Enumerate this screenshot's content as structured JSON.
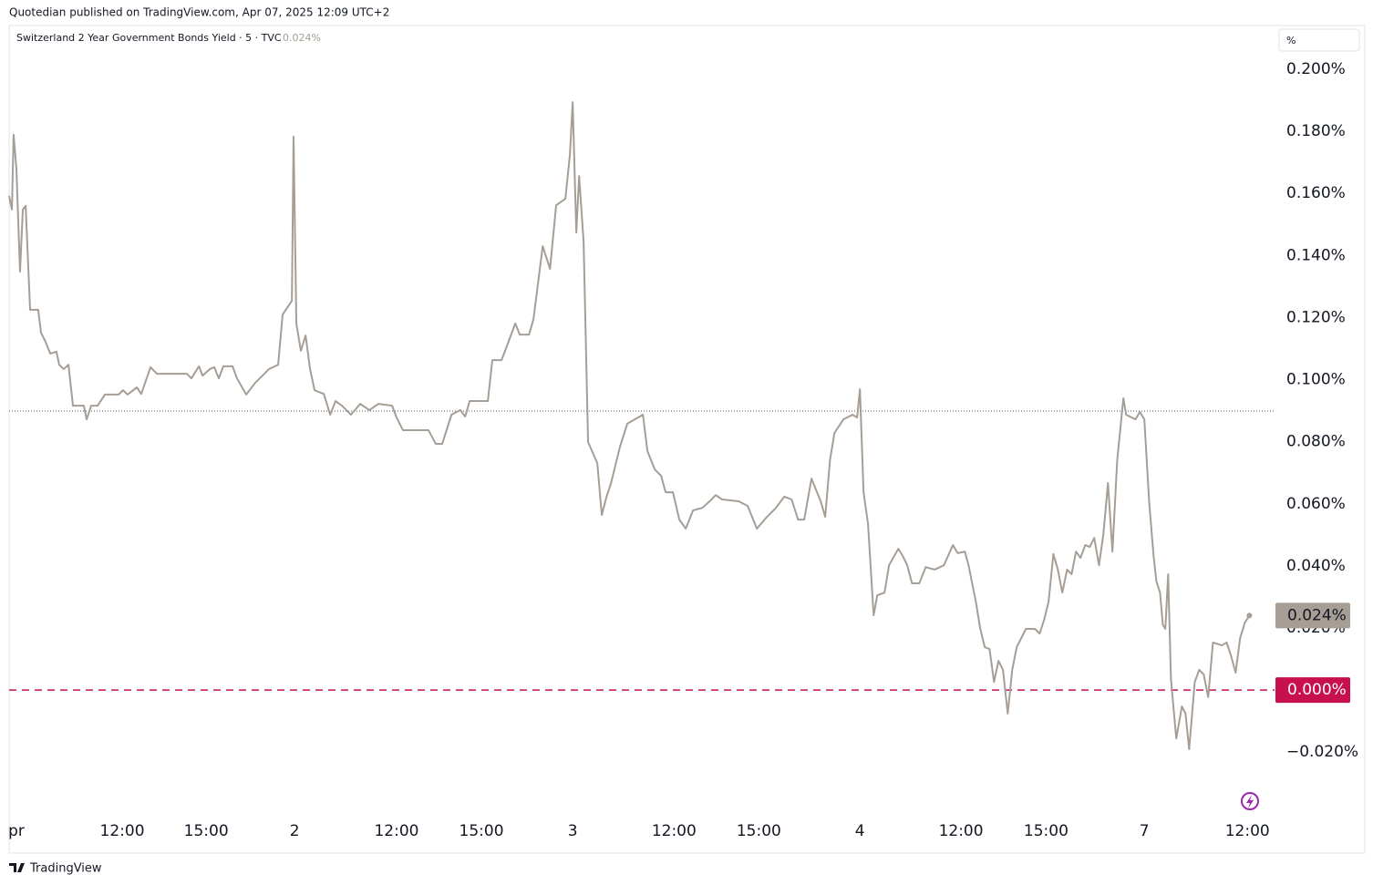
{
  "header": "Quotedian published on TradingView.com, Apr 07, 2025 12:09 UTC+2",
  "footer": "TradingView",
  "chart_data": {
    "type": "line",
    "y_unit": "%",
    "xlim": [
      0,
      45.2
    ],
    "ylim": [
      -0.0405,
      0.2141
    ],
    "xticks": [
      {
        "value": 0.26,
        "label": "pr"
      },
      {
        "value": 4.04,
        "label": "12:00"
      },
      {
        "value": 7.04,
        "label": "15:00"
      },
      {
        "value": 10.2,
        "label": "2"
      },
      {
        "value": 13.84,
        "label": "12:00"
      },
      {
        "value": 16.87,
        "label": "15:00"
      },
      {
        "value": 20.13,
        "label": "3"
      },
      {
        "value": 23.75,
        "label": "12:00"
      },
      {
        "value": 26.78,
        "label": "15:00"
      },
      {
        "value": 30.39,
        "label": "4"
      },
      {
        "value": 34.0,
        "label": "12:00"
      },
      {
        "value": 37.04,
        "label": "15:00"
      },
      {
        "value": 40.55,
        "label": "7"
      },
      {
        "value": 44.23,
        "label": "12:00"
      }
    ],
    "yticks": [
      {
        "value": 0.2,
        "label": "0.200%"
      },
      {
        "value": 0.18,
        "label": "0.180%"
      },
      {
        "value": 0.16,
        "label": "0.160%"
      },
      {
        "value": 0.14,
        "label": "0.140%"
      },
      {
        "value": 0.12,
        "label": "0.120%"
      },
      {
        "value": 0.1,
        "label": "0.100%"
      },
      {
        "value": 0.08,
        "label": "0.080%"
      },
      {
        "value": 0.06,
        "label": "0.060%"
      },
      {
        "value": 0.04,
        "label": "0.040%"
      },
      {
        "value": 0.02,
        "label": "0.020%"
      },
      {
        "value": -0.02,
        "label": "−0.020%"
      }
    ],
    "x": [
      0,
      0.1,
      0.16,
      0.26,
      0.39,
      0.49,
      0.59,
      0.75,
      1.04,
      1.14,
      1.3,
      1.47,
      1.69,
      1.79,
      1.95,
      2.12,
      2.28,
      2.67,
      2.77,
      2.93,
      3.16,
      3.42,
      3.91,
      4.07,
      4.23,
      4.56,
      4.72,
      5.05,
      5.28,
      6.35,
      6.51,
      6.78,
      6.91,
      7.17,
      7.33,
      7.49,
      7.65,
      7.98,
      8.14,
      8.47,
      8.79,
      9.12,
      9.28,
      9.61,
      9.77,
      10.1,
      10.16,
      10.26,
      10.42,
      10.59,
      10.75,
      10.91,
      11.24,
      11.47,
      11.66,
      11.89,
      12.21,
      12.54,
      12.87,
      13.19,
      13.68,
      13.84,
      14.07,
      14.98,
      15.24,
      15.47,
      15.8,
      16.12,
      16.29,
      16.45,
      17.1,
      17.26,
      17.59,
      17.75,
      18.08,
      18.24,
      18.57,
      18.73,
      19.06,
      19.32,
      19.54,
      19.87,
      20.03,
      20.13,
      20.26,
      20.36,
      20.52,
      20.68,
      21.01,
      21.17,
      21.34,
      21.5,
      21.82,
      22.08,
      22.64,
      22.8,
      23.06,
      23.29,
      23.45,
      23.71,
      23.94,
      24.17,
      24.43,
      24.76,
      25.02,
      25.24,
      25.47,
      26.06,
      26.38,
      26.71,
      27.04,
      27.36,
      27.69,
      27.95,
      28.18,
      28.4,
      28.66,
      28.99,
      29.15,
      29.32,
      29.48,
      29.8,
      30.13,
      30.29,
      30.39,
      30.52,
      30.68,
      30.88,
      31.01,
      31.27,
      31.43,
      31.76,
      31.92,
      32.08,
      32.25,
      32.51,
      32.74,
      33.06,
      33.39,
      33.71,
      33.88,
      34.14,
      34.27,
      34.53,
      34.69,
      34.85,
      35.02,
      35.18,
      35.34,
      35.5,
      35.67,
      35.83,
      35.99,
      36.32,
      36.64,
      36.81,
      36.97,
      37.13,
      37.3,
      37.46,
      37.62,
      37.79,
      37.95,
      38.11,
      38.27,
      38.44,
      38.6,
      38.76,
      38.93,
      39.09,
      39.25,
      39.41,
      39.58,
      39.8,
      39.9,
      40.23,
      40.39,
      40.55,
      40.72,
      40.88,
      40.98,
      41.11,
      41.21,
      41.3,
      41.4,
      41.5,
      41.69,
      41.89,
      42.02,
      42.15,
      42.35,
      42.51,
      42.67,
      42.83,
      43.0,
      43.32,
      43.49,
      43.65,
      43.81,
      43.97,
      44.14,
      44.3
    ],
    "series": [
      {
        "name": "Switzerland 2 Year Government Bonds Yield · 5 · TVC",
        "color": "#a69e95",
        "values": [
          0.1592,
          0.1548,
          0.1789,
          0.168,
          0.1348,
          0.1548,
          0.156,
          0.1225,
          0.1225,
          0.1151,
          0.1122,
          0.1084,
          0.109,
          0.1048,
          0.1034,
          0.1048,
          0.0916,
          0.0916,
          0.0872,
          0.0916,
          0.0916,
          0.0952,
          0.0952,
          0.0966,
          0.0952,
          0.0975,
          0.0954,
          0.104,
          0.1019,
          0.1019,
          0.1004,
          0.1043,
          0.1013,
          0.1034,
          0.104,
          0.1004,
          0.1043,
          0.1043,
          0.1004,
          0.0952,
          0.099,
          0.1019,
          0.1034,
          0.1048,
          0.121,
          0.1254,
          0.1783,
          0.1181,
          0.1093,
          0.1142,
          0.1034,
          0.0966,
          0.0954,
          0.0887,
          0.0931,
          0.0916,
          0.0887,
          0.0922,
          0.0902,
          0.0922,
          0.0916,
          0.0878,
          0.0837,
          0.0837,
          0.0793,
          0.0793,
          0.0887,
          0.0902,
          0.0881,
          0.0931,
          0.0931,
          0.1063,
          0.1063,
          0.1101,
          0.1181,
          0.1145,
          0.1145,
          0.1195,
          0.143,
          0.1357,
          0.1562,
          0.1583,
          0.1724,
          0.1894,
          0.1474,
          0.1656,
          0.1445,
          0.0799,
          0.0731,
          0.0564,
          0.0623,
          0.0667,
          0.0784,
          0.0858,
          0.0887,
          0.077,
          0.0711,
          0.069,
          0.0637,
          0.0637,
          0.0549,
          0.052,
          0.0579,
          0.0587,
          0.0608,
          0.0628,
          0.0614,
          0.0608,
          0.0593,
          0.052,
          0.0555,
          0.0584,
          0.0623,
          0.0614,
          0.0549,
          0.0549,
          0.0681,
          0.0608,
          0.0558,
          0.074,
          0.0828,
          0.0872,
          0.0887,
          0.0878,
          0.0969,
          0.0637,
          0.0535,
          0.0241,
          0.0305,
          0.0314,
          0.0402,
          0.0455,
          0.0432,
          0.0402,
          0.0344,
          0.0344,
          0.0396,
          0.0388,
          0.0402,
          0.0467,
          0.0441,
          0.0446,
          0.0402,
          0.0285,
          0.0197,
          0.0138,
          0.0132,
          0.0026,
          0.0094,
          0.0065,
          -0.0076,
          0.0065,
          0.0138,
          0.0197,
          0.0197,
          0.0182,
          0.0226,
          0.0285,
          0.0438,
          0.0388,
          0.0314,
          0.0388,
          0.0373,
          0.0446,
          0.0426,
          0.0467,
          0.0461,
          0.049,
          0.0402,
          0.0505,
          0.0667,
          0.0446,
          0.074,
          0.094,
          0.0887,
          0.0872,
          0.0896,
          0.0872,
          0.0608,
          0.0432,
          0.035,
          0.0314,
          0.0211,
          0.0197,
          0.0373,
          0.0035,
          -0.0156,
          -0.0053,
          -0.0076,
          -0.0191,
          0.0026,
          0.0065,
          0.005,
          -0.0023,
          0.0153,
          0.0144,
          0.0153,
          0.0109,
          0.0056,
          0.0167,
          0.0217,
          0.024
        ]
      }
    ],
    "last_value": {
      "value": 0.024,
      "label": "0.024%",
      "color": "#a69e95"
    },
    "reference_lines": [
      {
        "value": 0.0899,
        "color": "#555555",
        "style": "dotted"
      },
      {
        "value": 0,
        "label": "0.000%",
        "color": "#c8104c",
        "style": "dashed"
      }
    ]
  }
}
